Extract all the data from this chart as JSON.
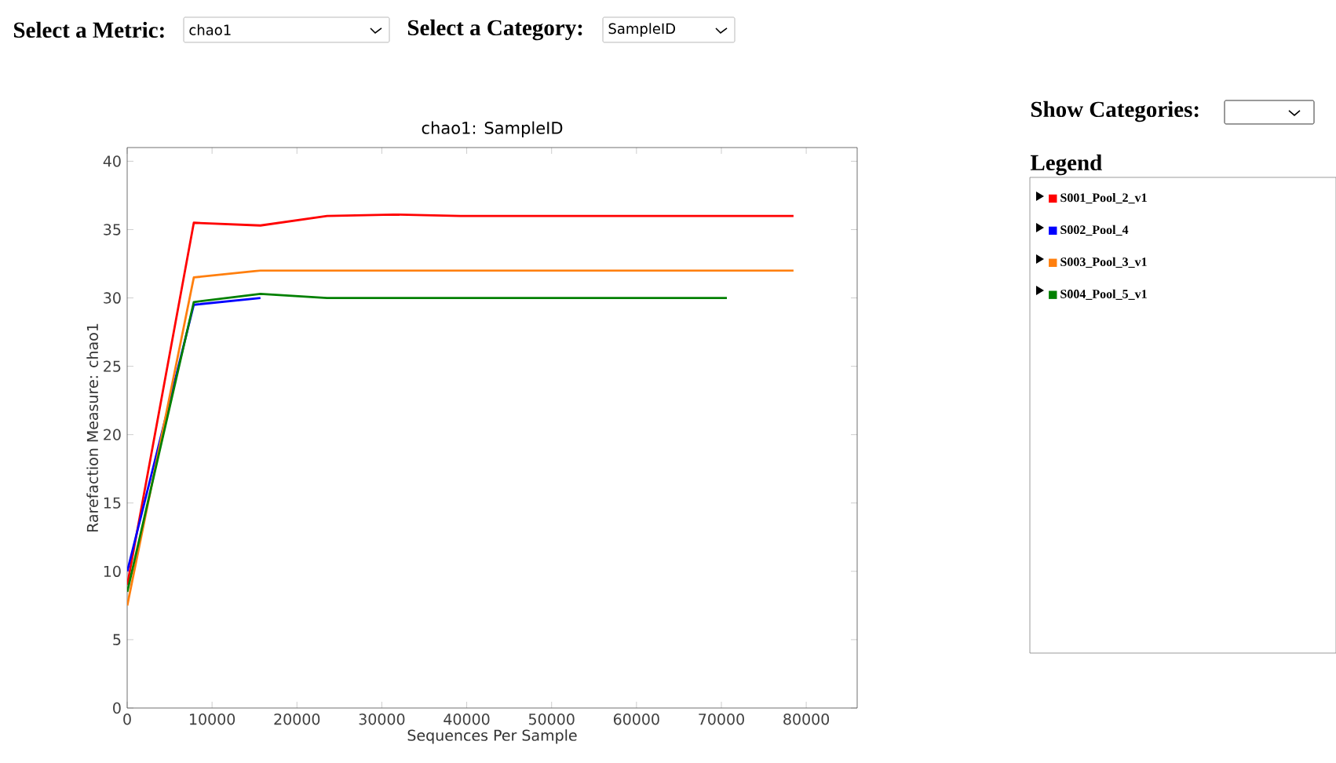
{
  "chart_data": {
    "type": "line",
    "title": "chao1: SampleID",
    "xlabel": "Sequences Per Sample",
    "ylabel": "Rarefaction Measure: chao1",
    "legend_title": "Legend",
    "annotations": [
      "Select a Metric:",
      "chao1",
      "Select a Category:",
      "SampleID",
      "Show Categories:"
    ],
    "xlim": [
      0,
      86000
    ],
    "ylim": [
      0,
      41
    ],
    "xticks": [
      0,
      10000,
      20000,
      30000,
      40000,
      50000,
      60000,
      70000,
      80000
    ],
    "yticks": [
      0,
      5,
      10,
      15,
      20,
      25,
      30,
      35,
      40
    ],
    "legend": "right",
    "grid": false,
    "marker": "none",
    "line_style": "solid",
    "series": [
      {
        "name": "S001_Pool_2_v1",
        "color": "#ff0000",
        "x": [
          10,
          7850,
          15700,
          23550,
          31400,
          39250,
          47100,
          54950,
          62800,
          70650,
          78500
        ],
        "values": [
          9,
          35.5,
          35.3,
          36,
          36.1,
          36,
          36,
          36,
          36,
          36,
          36
        ]
      },
      {
        "name": "S002_Pool_4",
        "color": "#0000ff",
        "x": [
          10,
          7850,
          15700
        ],
        "values": [
          10,
          29.5,
          30
        ]
      },
      {
        "name": "S003_Pool_3_v1",
        "color": "#ff7f0e",
        "x": [
          10,
          7850,
          15700,
          23550,
          31400,
          39250,
          47100,
          54950,
          62800,
          70650,
          78500
        ],
        "values": [
          7.5,
          31.5,
          32,
          32,
          32,
          32,
          32,
          32,
          32,
          32,
          32
        ]
      },
      {
        "name": "S004_Pool_5_v1",
        "color": "#008000",
        "x": [
          10,
          7850,
          15700,
          23550,
          31400,
          39250,
          47100,
          54950,
          62800,
          70650
        ],
        "values": [
          8.5,
          29.7,
          30.3,
          30,
          30,
          30,
          30,
          30,
          30,
          30
        ]
      }
    ]
  }
}
